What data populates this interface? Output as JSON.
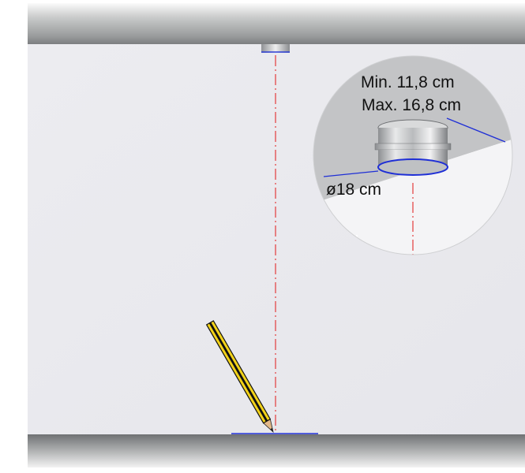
{
  "annotations": {
    "min_height": "Min. 11,8 cm",
    "max_height": "Max. 16,8 cm",
    "diameter": "ø18 cm"
  },
  "icons": {
    "tool": "pencil-icon"
  },
  "colors": {
    "dimension_line": "#1f2fd6",
    "center_line": "#e33b3b",
    "pencil_body": "#f2d21a",
    "pencil_stripe": "#111111",
    "wall_panel": "#e9e9ee",
    "beam": "#8e9092"
  }
}
